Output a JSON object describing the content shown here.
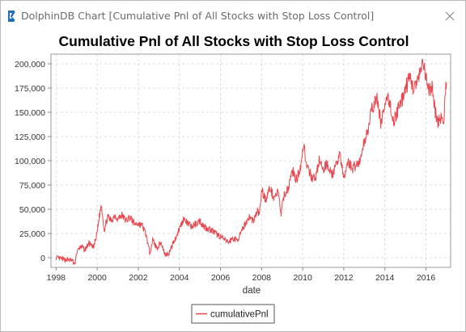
{
  "window": {
    "title": "DolphinDB Chart [Cumulative Pnl of All Stocks with Stop Loss Control]",
    "app_icon": "dolphindb-logo-icon",
    "close_icon": "close-icon"
  },
  "chart_data": {
    "type": "line",
    "title": "Cumulative Pnl of All Stocks with Stop Loss Control",
    "xlabel": "date",
    "ylabel": "",
    "x_ticks": [
      "1998",
      "2000",
      "2002",
      "2004",
      "2006",
      "2008",
      "2010",
      "2012",
      "2014",
      "2016"
    ],
    "y_ticks": [
      "0",
      "25,000",
      "50,000",
      "75,000",
      "100,000",
      "125,000",
      "150,000",
      "175,000",
      "200,000"
    ],
    "xlim": [
      1997.75,
      2017.2
    ],
    "ylim": [
      -10000,
      210000
    ],
    "grid": true,
    "legend_position": "bottom",
    "colors": {
      "series": "#e8474f",
      "grid": "#dddddd",
      "axis": "#888888"
    },
    "series": [
      {
        "name": "cumulativePnl",
        "x": [
          1998.0,
          1998.2,
          1998.4,
          1998.6,
          1998.8,
          1998.9,
          1999.0,
          1999.2,
          1999.4,
          1999.6,
          1999.8,
          1999.95,
          2000.05,
          2000.2,
          2000.35,
          2000.5,
          2000.7,
          2000.85,
          2001.0,
          2001.2,
          2001.4,
          2001.6,
          2001.8,
          2002.0,
          2002.2,
          2002.4,
          2002.55,
          2002.7,
          2002.9,
          2003.1,
          2003.3,
          2003.5,
          2003.7,
          2003.85,
          2004.0,
          2004.2,
          2004.4,
          2004.6,
          2004.8,
          2005.0,
          2005.2,
          2005.4,
          2005.6,
          2005.8,
          2006.0,
          2006.2,
          2006.4,
          2006.6,
          2006.8,
          2007.0,
          2007.2,
          2007.4,
          2007.6,
          2007.8,
          2007.9,
          2008.0,
          2008.2,
          2008.4,
          2008.6,
          2008.8,
          2008.95,
          2009.1,
          2009.3,
          2009.5,
          2009.7,
          2009.9,
          2010.05,
          2010.2,
          2010.4,
          2010.6,
          2010.8,
          2011.0,
          2011.2,
          2011.4,
          2011.6,
          2011.8,
          2012.0,
          2012.2,
          2012.4,
          2012.6,
          2012.8,
          2013.0,
          2013.2,
          2013.4,
          2013.6,
          2013.8,
          2014.0,
          2014.2,
          2014.4,
          2014.6,
          2014.8,
          2015.0,
          2015.2,
          2015.4,
          2015.55,
          2015.7,
          2015.85,
          2016.0,
          2016.15,
          2016.3,
          2016.45,
          2016.6,
          2016.75,
          2016.85,
          2016.95,
          2017.0
        ],
        "y": [
          0,
          -1000,
          -2000,
          -2000,
          -3000,
          -8000,
          5000,
          12000,
          8000,
          15000,
          10000,
          20000,
          35000,
          55000,
          28000,
          42000,
          38000,
          44000,
          40000,
          44000,
          38000,
          42000,
          35000,
          35000,
          33000,
          22000,
          5000,
          18000,
          10000,
          16000,
          3000,
          5000,
          15000,
          22000,
          30000,
          40000,
          35000,
          32000,
          35000,
          38000,
          32000,
          30000,
          28000,
          24000,
          22000,
          18000,
          16000,
          20000,
          18000,
          25000,
          35000,
          42000,
          38000,
          48000,
          45000,
          70000,
          60000,
          72000,
          62000,
          68000,
          45000,
          65000,
          72000,
          90000,
          80000,
          95000,
          118000,
          92000,
          85000,
          80000,
          100000,
          90000,
          98000,
          85000,
          92000,
          110000,
          80000,
          100000,
          92000,
          96000,
          100000,
          120000,
          135000,
          155000,
          165000,
          140000,
          155000,
          165000,
          140000,
          150000,
          160000,
          175000,
          185000,
          175000,
          180000,
          188000,
          200000,
          185000,
          170000,
          178000,
          150000,
          140000,
          145000,
          135000,
          170000,
          180000
        ]
      }
    ]
  }
}
